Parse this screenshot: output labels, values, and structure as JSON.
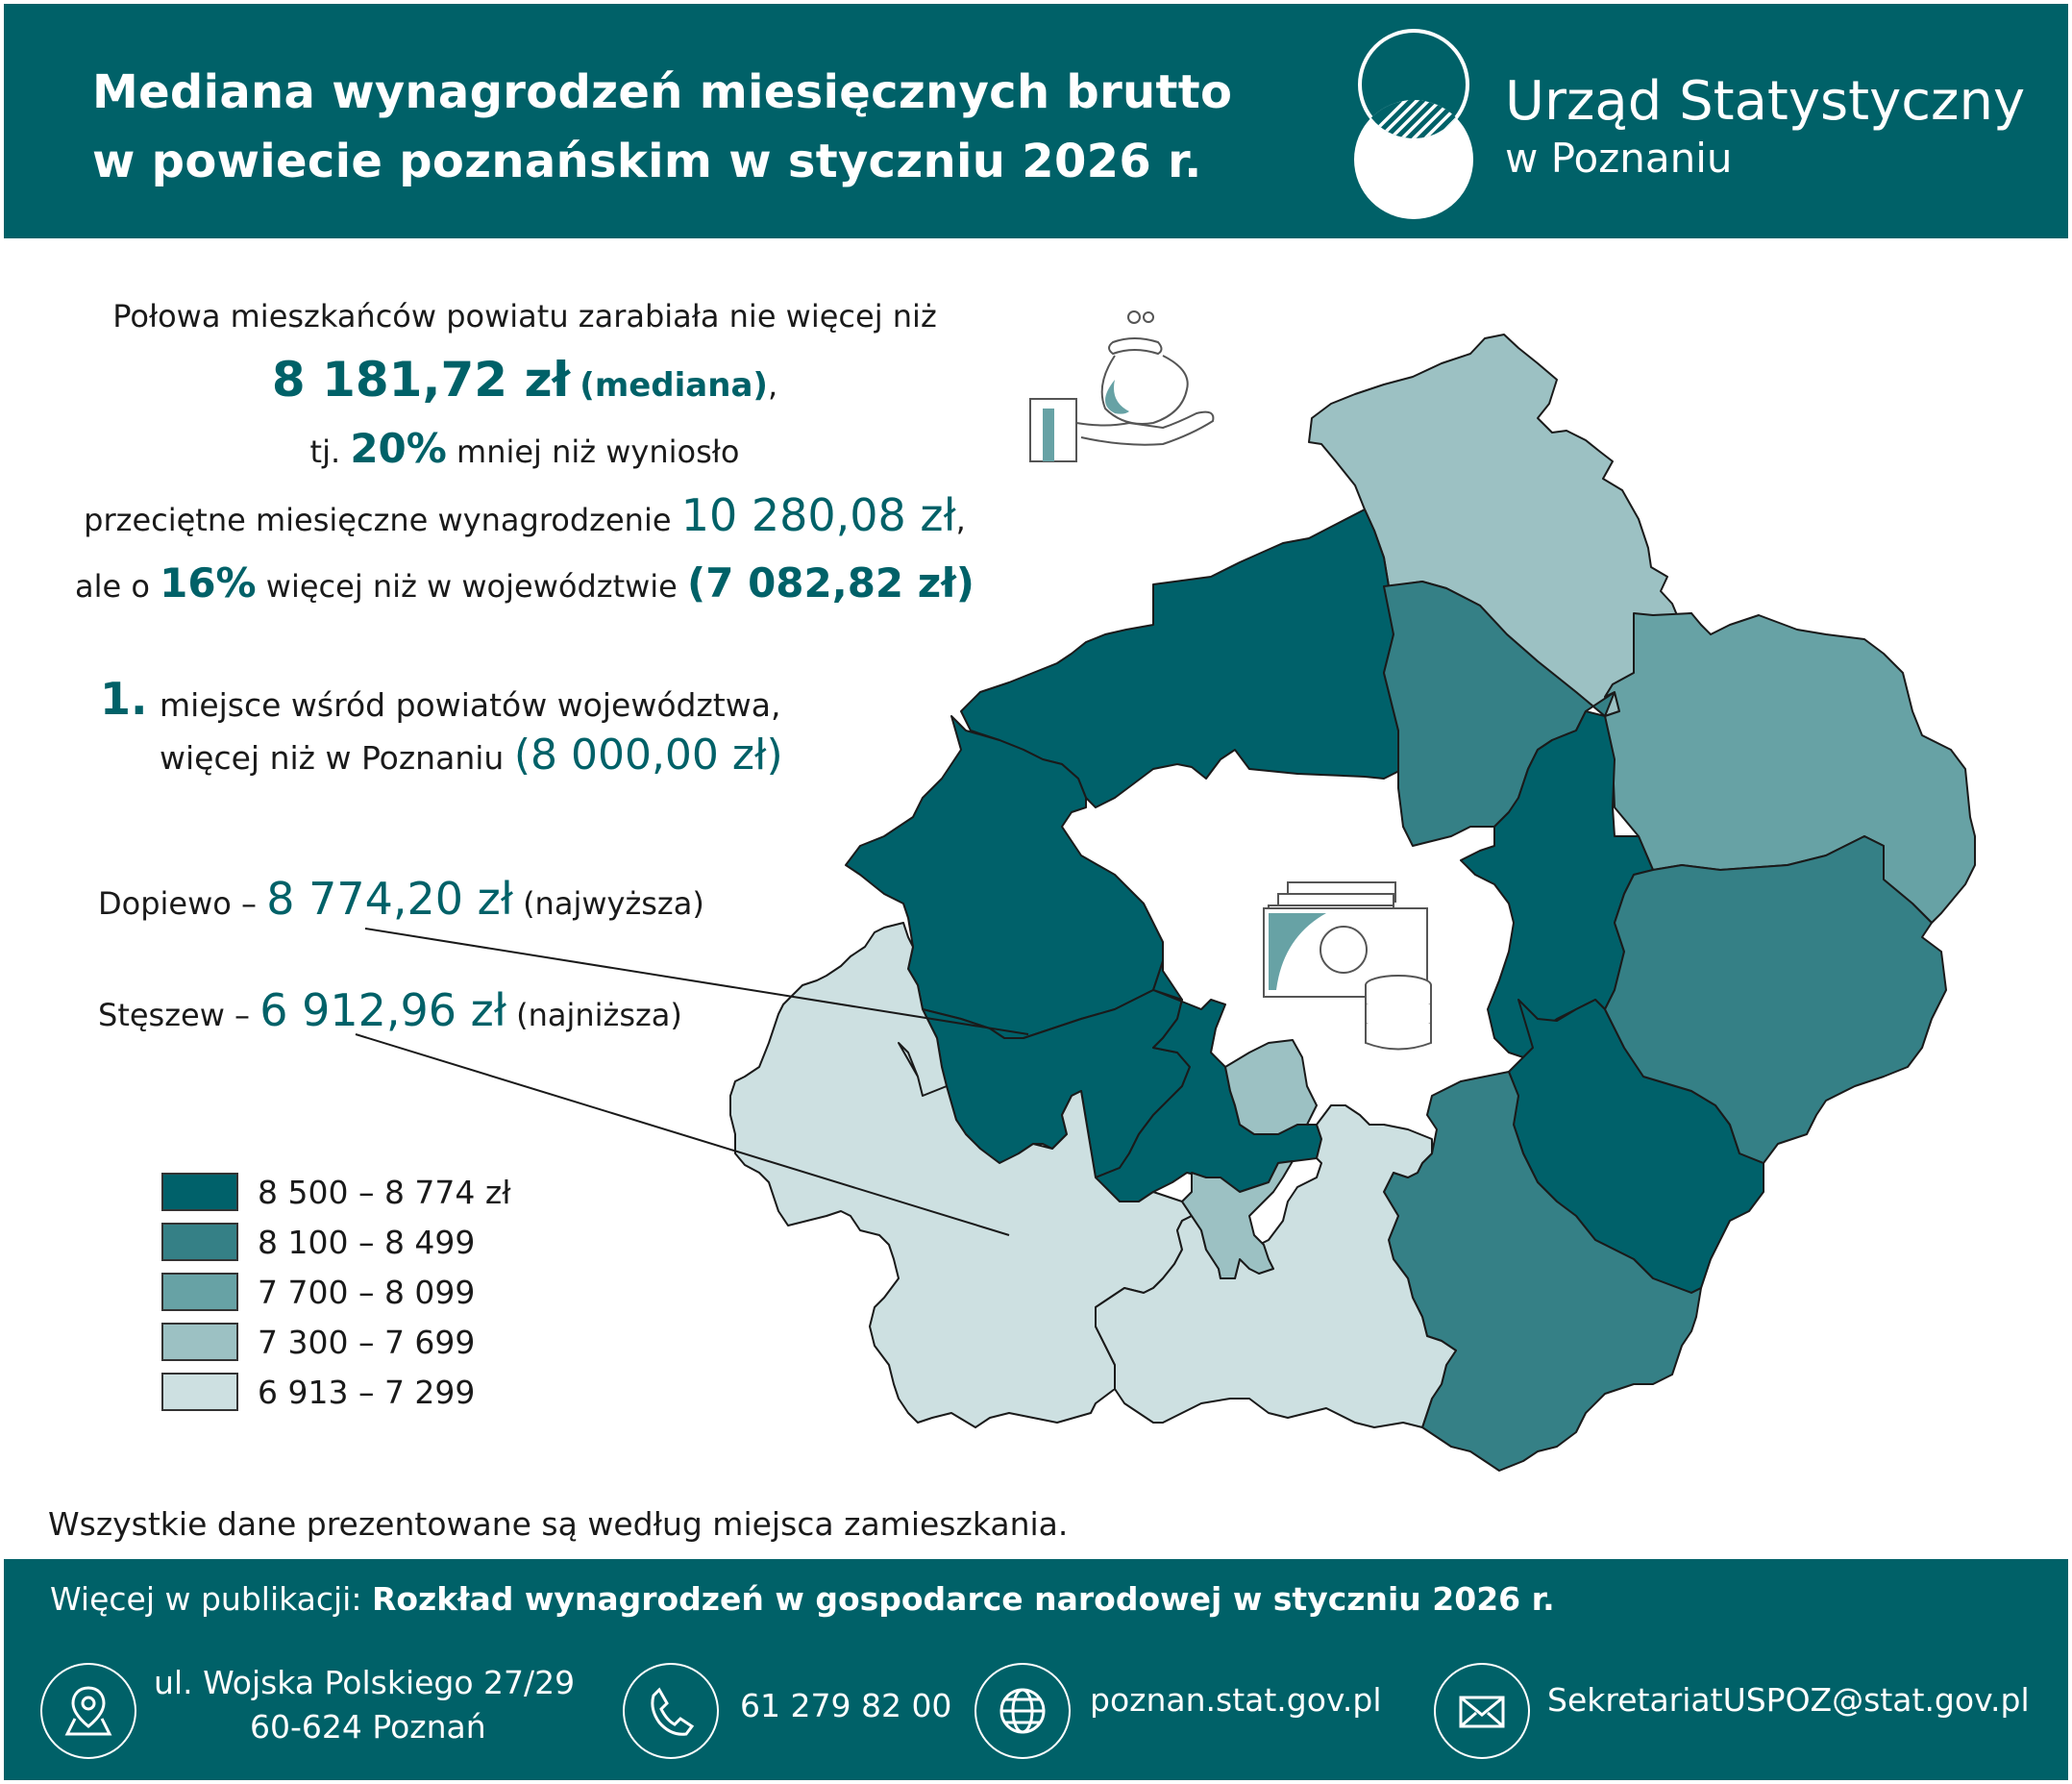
{
  "header": {
    "title_line1": "Mediana wynagrodzeń miesięcznych brutto",
    "title_line2": "w powiecie poznańskim w styczniu 2026 r.",
    "org_name": "Urząd Statystyczny",
    "org_city": "w Poznaniu"
  },
  "summary": {
    "line1": "Połowa mieszkańców powiatu zarabiała nie więcej niż",
    "median_value": "8 181,72 zł",
    "median_label": "(mediana)",
    "median_suffix": ",",
    "line3_pre": "tj.",
    "pct_less": "20%",
    "line3_post": "mniej niż wyniosło",
    "line4_pre": "przeciętne miesięczne wynagrodzenie",
    "avg_value": "10 280,08 zł",
    "line4_suffix": ",",
    "line5_pre": "ale o",
    "pct_more": "16%",
    "line5_mid": "więcej niż w województwie",
    "voiv_value": "(7 082,82 zł)"
  },
  "rank": {
    "position": "1.",
    "line1": "miejsce wśród powiatów województwa,",
    "line2_pre": "więcej niż w Poznaniu",
    "poznan_value": "(8 000,00 zł)"
  },
  "extremes": {
    "highest_name": "Dopiewo –",
    "highest_value": "8 774,20 zł",
    "highest_note": "(najwyższa)",
    "lowest_name": "Stęszew –",
    "lowest_value": "6 912,96 zł",
    "lowest_note": "(najniższa)"
  },
  "legend": [
    {
      "label": "8 500 – 8 774 zł",
      "color": "#00616a"
    },
    {
      "label": "8 100 – 8 499",
      "color": "#358086"
    },
    {
      "label": "7 700 – 8 099",
      "color": "#67a2a5"
    },
    {
      "label": "7 300 – 7 699",
      "color": "#9cc1c3"
    },
    {
      "label": "6 913 – 7 299",
      "color": "#cde0e1"
    }
  ],
  "colors": {
    "brand": "#006168",
    "class1": "#00616a",
    "class2": "#358086",
    "class3": "#67a2a5",
    "class4": "#9cc1c3",
    "class5": "#cde0e1"
  },
  "footnote": "Wszystkie dane prezentowane są według miejsca zamieszkania.",
  "footer": {
    "more_label": "Więcej w publikacji:",
    "publication": "Rozkład wynagrodzeń w gospodarce narodowej w styczniu 2026 r.",
    "address_line1": "ul. Wojska Polskiego 27/29",
    "address_line2": "60-624 Poznań",
    "phone": "61 279 82 00",
    "website": "poznan.stat.gov.pl",
    "email": "SekretariatUSPOZ@stat.gov.pl",
    "icons": [
      "location-pin-icon",
      "phone-icon",
      "globe-icon",
      "envelope-icon"
    ]
  }
}
